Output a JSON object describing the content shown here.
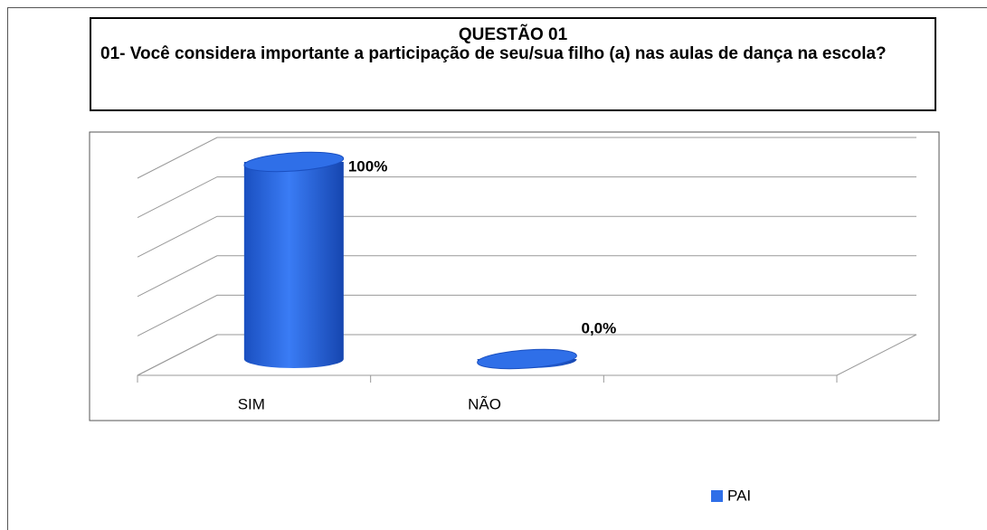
{
  "chart_data": {
    "type": "bar3d",
    "title": "QUESTÃO 01",
    "subtitle": "01- Você  considera importante a participação de  seu/sua filho (a) nas aulas de dança na escola?",
    "categories": [
      "SIM",
      "NÃO",
      null
    ],
    "series": [
      {
        "name": "PAI",
        "color": "#2f6fe8",
        "values": [
          100,
          0,
          null
        ],
        "value_labels": [
          "100%",
          "0,0%",
          null
        ]
      }
    ],
    "ylim": [
      0,
      100
    ],
    "yticks": [
      0,
      20,
      40,
      60,
      80,
      100
    ],
    "grid": true,
    "legend": "bottom-right"
  }
}
